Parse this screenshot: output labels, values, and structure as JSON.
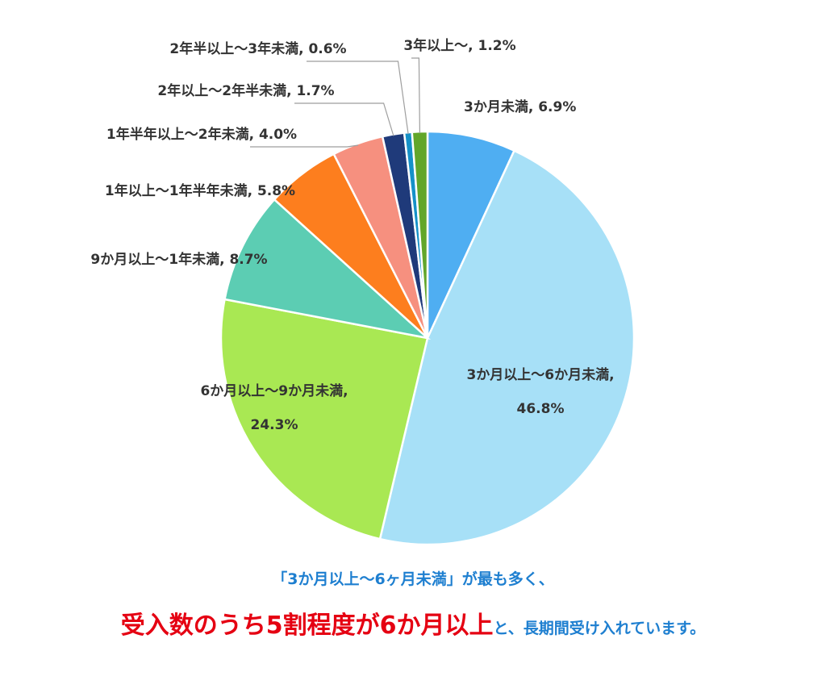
{
  "chart_data": {
    "type": "pie",
    "slices": [
      {
        "label": "3か月未満",
        "value": 6.9,
        "color": "#4faef2",
        "text": "3か月未満, 6.9%"
      },
      {
        "label": "3か月以上〜6か月未満",
        "value": 46.8,
        "color": "#a7e0f7",
        "text_lines": [
          "3か月以上〜6か月未満,",
          "46.8%"
        ]
      },
      {
        "label": "6か月以上〜9か月未満",
        "value": 24.3,
        "color": "#a9e853",
        "text_lines": [
          "6か月以上〜9か月未満,",
          "24.3%"
        ]
      },
      {
        "label": "9か月以上〜1年未満",
        "value": 8.7,
        "color": "#5ccdb3",
        "text": "9か月以上〜1年未満, 8.7%"
      },
      {
        "label": "1年以上〜1年半年未満",
        "value": 5.8,
        "color": "#fd7e1e",
        "text": "1年以上〜1年半年未満, 5.8%"
      },
      {
        "label": "1年半年以上〜2年未満",
        "value": 4.0,
        "color": "#f6907f",
        "text": "1年半年以上〜2年未満, 4.0%"
      },
      {
        "label": "2年以上〜2年半未満",
        "value": 1.7,
        "color": "#1f3a7a",
        "text": "2年以上〜2年半未満, 1.7%"
      },
      {
        "label": "2年半以上〜3年未満",
        "value": 0.6,
        "color": "#1591c8",
        "text": "2年半以上〜3年未満, 0.6%"
      },
      {
        "label": "3年以上〜",
        "value": 1.2,
        "color": "#62a62a",
        "text": "3年以上〜, 1.2%"
      }
    ]
  },
  "caption": {
    "line1": "「3か月以上〜6ヶ月未満」が最も多く、",
    "line2_red": "受入数のうち5割程度が6か月以上",
    "line2_blue": "と、長期間受け入れています。"
  }
}
